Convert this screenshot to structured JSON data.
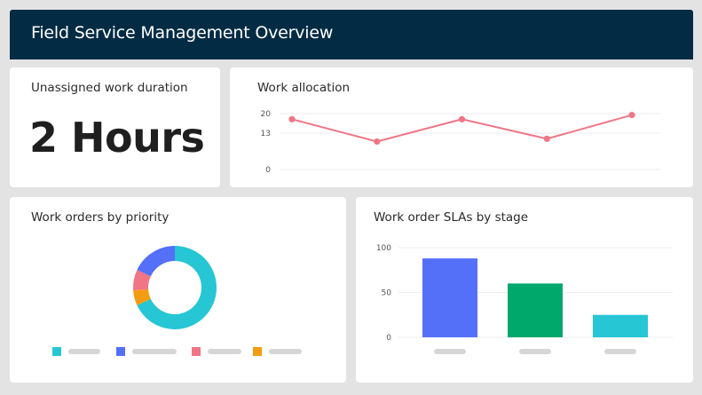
{
  "header": {
    "title": "Field Service Management Overview"
  },
  "unassigned": {
    "title": "Unassigned work duration",
    "value": "2 Hours"
  },
  "allocation": {
    "title": "Work allocation",
    "color": "#f07585",
    "chart_data": {
      "type": "line",
      "x": [
        1,
        2,
        3,
        4,
        5
      ],
      "values": [
        18,
        10,
        18,
        11,
        19.5
      ],
      "ylim": [
        0,
        20
      ],
      "yticks": [
        "20",
        "13",
        "0"
      ],
      "ytick_values": [
        20,
        13,
        0
      ],
      "grid": true
    }
  },
  "priority": {
    "title": "Work orders by priority",
    "chart_data": {
      "type": "pie",
      "slices": [
        {
          "value": 68,
          "color": "#26c6d4"
        },
        {
          "value": 6,
          "color": "#f39c12"
        },
        {
          "value": 8,
          "color": "#f07585"
        },
        {
          "value": 18,
          "color": "#5470f9"
        }
      ]
    }
  },
  "slas": {
    "title": "Work order SLAs by stage",
    "chart_data": {
      "type": "bar",
      "values": [
        88,
        60,
        25
      ],
      "colors": [
        "#5470f9",
        "#00a86b",
        "#26c6d4"
      ],
      "ylim": [
        0,
        100
      ],
      "yticks": [
        "100",
        "50",
        "0"
      ],
      "ytick_values": [
        100,
        50,
        0
      ]
    }
  }
}
